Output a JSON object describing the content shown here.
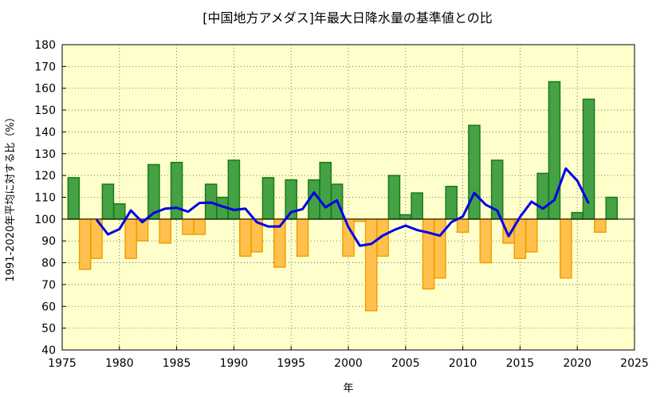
{
  "chart_data": {
    "type": "bar",
    "title": "[中国地方アメダス]年最大日降水量の基準値との比",
    "xlabel": "年",
    "ylabel": "1991-2020年平均に対する比（%）",
    "xlim": [
      1975,
      2025
    ],
    "ylim": [
      40,
      180
    ],
    "baseline": 100,
    "grid": true,
    "x_ticks": [
      1975,
      1980,
      1985,
      1990,
      1995,
      2000,
      2005,
      2010,
      2015,
      2020,
      2025
    ],
    "y_ticks": [
      40,
      50,
      60,
      70,
      80,
      90,
      100,
      110,
      120,
      130,
      140,
      150,
      160,
      170,
      180
    ],
    "colors": {
      "plot_background": "#ffffcc",
      "above_fill": "#44a144",
      "above_stroke": "#1a7a1a",
      "below_fill": "#ffc04d",
      "below_stroke": "#f0a000",
      "line": "#0000e6"
    },
    "years": [
      1976,
      1977,
      1978,
      1979,
      1980,
      1981,
      1982,
      1983,
      1984,
      1985,
      1986,
      1987,
      1988,
      1989,
      1990,
      1991,
      1992,
      1993,
      1994,
      1995,
      1996,
      1997,
      1998,
      1999,
      2000,
      2001,
      2002,
      2003,
      2004,
      2005,
      2006,
      2007,
      2008,
      2009,
      2010,
      2011,
      2012,
      2013,
      2014,
      2015,
      2016,
      2017,
      2018,
      2019,
      2020,
      2021,
      2022,
      2023
    ],
    "values": [
      119,
      77,
      82,
      116,
      107,
      82,
      90,
      125,
      89,
      126,
      93,
      93,
      116,
      110,
      127,
      83,
      85,
      119,
      78,
      118,
      83,
      118,
      126,
      116,
      83,
      99,
      58,
      83,
      120,
      102,
      112,
      68,
      73,
      115,
      94,
      143,
      80,
      127,
      89,
      82,
      85,
      121,
      163,
      73,
      103,
      155,
      94,
      110
    ],
    "series": [
      {
        "type": "line",
        "x": [
          1978,
          1979,
          1980,
          1981,
          1982,
          1983,
          1984,
          1985,
          1986,
          1987,
          1988,
          1989,
          1990,
          1991,
          1992,
          1993,
          1994,
          1995,
          1996,
          1997,
          1998,
          1999,
          2000,
          2001,
          2002,
          2003,
          2004,
          2005,
          2006,
          2007,
          2008,
          2009,
          2010,
          2011,
          2012,
          2013,
          2014,
          2015,
          2016,
          2017,
          2018,
          2019,
          2020,
          2021
        ],
        "values": [
          99.8,
          93,
          95.4,
          104,
          98.6,
          102.8,
          104.8,
          105.2,
          103.4,
          107.4,
          107.6,
          105.8,
          104.2,
          104.8,
          98.6,
          96.6,
          96.6,
          103.2,
          104.6,
          112.2,
          105.4,
          108.6,
          96.4,
          87.8,
          88.6,
          92.4,
          95,
          97,
          95,
          93.8,
          92.4,
          98.6,
          101.2,
          112,
          106.6,
          104,
          92.2,
          101,
          108,
          104.8,
          108.8,
          123.2,
          117.6,
          107.2
        ]
      }
    ]
  }
}
